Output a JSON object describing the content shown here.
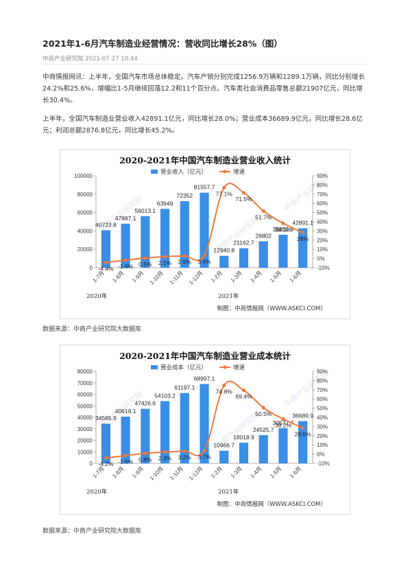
{
  "article": {
    "title": "2021年1-6月汽车制造业经营情况：营收同比增长28%（图）",
    "meta": "中商产业研究院 2021-07-27 10:44",
    "paragraphs": [
      "中商情报网讯：上半年，全国汽车市场总体稳定。汽车产销分别完成1256.9万辆和1289.1万辆，同比分别增长24.2%和25.6%，增幅比1-5月继续回落12.2和11个百分点。汽车类社会消费品零售总额21907亿元，同比增长30.4%。",
      "上半年，全国汽车制造业营业收入42891.1亿元，同比增长28.0%；营业成本36689.9亿元，同比增长28.6亿元；利润总额2876.8亿元，同比增长45.2%。"
    ],
    "source_1": "数据来源：中商产业研究院大数据库",
    "source_2": "数据来源：中商产业研究院大数据库"
  },
  "watermark": "中商产业研究院",
  "colors": {
    "bar": "#3a8ee6",
    "line": "#f07838"
  },
  "chart_data": [
    {
      "type": "bar",
      "title": "2020-2021年中国汽车制造业营业收入统计",
      "categories": [
        "1-7月",
        "1-8月",
        "1-9月",
        "1-10月",
        "1-11月",
        "1-12月",
        "1-2月",
        "1-3月",
        "1-4月",
        "1-5月",
        "1-6月"
      ],
      "year_labels": [
        "2020年",
        "2021年"
      ],
      "series": [
        {
          "name": "营业收入（亿元）",
          "kind": "bar",
          "axis": "left",
          "values": [
            40723.8,
            47887.1,
            56013.1,
            63949,
            72352,
            81557.7,
            12940.8,
            21162.7,
            28802,
            35852.8,
            42891.1
          ],
          "labels": [
            "40723.8",
            "47887.1",
            "56013.1",
            "63949",
            "72352",
            "81557.7",
            "12940.8",
            "21162.7",
            "28802",
            "35852.8",
            "42891.1"
          ]
        },
        {
          "name": "增速",
          "kind": "line",
          "axis": "right",
          "values": [
            -4.4,
            -1.8,
            0.5,
            2.1,
            2.9,
            3.4,
            77.1,
            71.5,
            51.7,
            38.3,
            28
          ],
          "labels": [
            "-4.4%",
            "-1.8%",
            "0.5%",
            "2.1%",
            "2.9%",
            "3.4%",
            "77.1%",
            "71.5%",
            "51.7%",
            "38.3%",
            "28%"
          ]
        }
      ],
      "y_left": {
        "min": 0,
        "max": 100000,
        "step": 20000,
        "ticks": [
          "0",
          "20000",
          "40000",
          "60000",
          "80000",
          "100000"
        ]
      },
      "y_right": {
        "min": -10,
        "max": 90,
        "step": 10,
        "ticks": [
          "-10%",
          "0%",
          "10%",
          "20%",
          "30%",
          "40%",
          "50%",
          "60%",
          "70%",
          "80%",
          "90%"
        ]
      },
      "credit": "制图：中商情报网（WWW.ASKCI.COM）"
    },
    {
      "type": "bar",
      "title": "2020-2021年中国汽车制造业营业成本统计",
      "categories": [
        "1-7月",
        "1-8月",
        "1-9月",
        "1-10月",
        "1-11月",
        "1-12月",
        "1-2月",
        "1-3月",
        "1-4月",
        "1-5月",
        "1-6月"
      ],
      "year_labels": [
        "2020年",
        "2021年"
      ],
      "series": [
        {
          "name": "营业成本（亿元）",
          "kind": "bar",
          "axis": "left",
          "values": [
            34565.9,
            40619.1,
            47426.6,
            54103.2,
            61197.1,
            68997.1,
            10966.7,
            18018.9,
            24525.7,
            30577.7,
            36689.9
          ],
          "labels": [
            "34565.9",
            "40619.1",
            "47426.6",
            "54103.2",
            "61197.1",
            "68997.1",
            "10966.7",
            "18018.9",
            "24525.7",
            "30577.7",
            "36689.9"
          ]
        },
        {
          "name": "增速",
          "kind": "line",
          "axis": "right",
          "values": [
            -4.2,
            -1.6,
            0.8,
            2.3,
            3.2,
            3.7,
            74.8,
            69.4,
            50.5,
            38.2,
            28.6
          ],
          "labels": [
            "-4.2%",
            "-1.6%",
            "0.8%",
            "2.3%",
            "3.2%",
            "3.7%",
            "74.8%",
            "69.4%",
            "50.5%",
            "38.2%",
            "28.6%"
          ]
        }
      ],
      "y_left": {
        "min": 0,
        "max": 80000,
        "step": 10000,
        "ticks": [
          "0",
          "10000",
          "20000",
          "30000",
          "40000",
          "50000",
          "60000",
          "70000",
          "80000"
        ]
      },
      "y_right": {
        "min": -10,
        "max": 90,
        "step": 10,
        "ticks": [
          "-10%",
          "0%",
          "10%",
          "20%",
          "30%",
          "40%",
          "50%",
          "60%",
          "70%",
          "80%",
          "90%"
        ]
      },
      "credit": "制图：中商情报网（WWW.ASKCI.COM）"
    }
  ]
}
